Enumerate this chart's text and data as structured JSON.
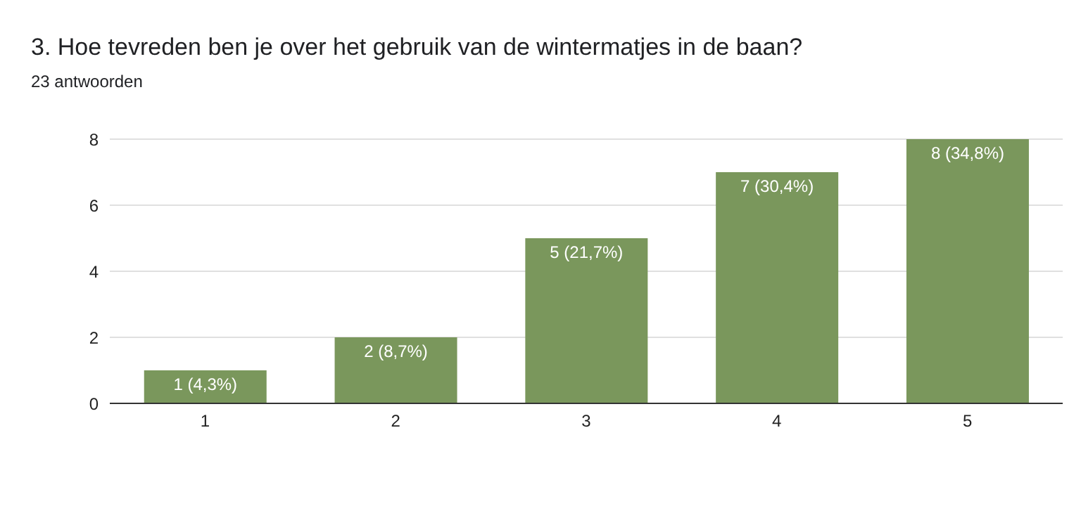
{
  "chart_data": {
    "type": "bar",
    "title": "3. Hoe tevreden ben je over het gebruik van de wintermatjes in de baan?",
    "subtitle": "23 antwoorden",
    "categories": [
      "1",
      "2",
      "3",
      "4",
      "5"
    ],
    "values": [
      1,
      2,
      5,
      7,
      8
    ],
    "value_labels": [
      "1 (4,3%)",
      "2 (8,7%)",
      "5 (21,7%)",
      "7 (30,4%)",
      "8 (34,8%)"
    ],
    "color": "#7a975c",
    "ylim": [
      0,
      8
    ],
    "yticks": [
      0,
      2,
      4,
      6,
      8
    ],
    "grid": "y"
  }
}
